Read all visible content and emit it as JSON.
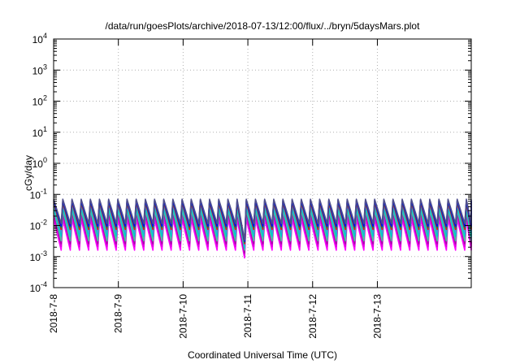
{
  "chart_data": {
    "type": "line",
    "title": "/data/run/goesPlots/archive/2018-07-13/12:00/flux/../bryn/5daysMars.plot",
    "xlabel": "Coordinated Universal Time (UTC)",
    "ylabel": "cGy/day",
    "y_scale": "log",
    "ylim": [
      0.0001,
      10000
    ],
    "xlim_days": [
      0,
      6.45
    ],
    "grid": true,
    "x_ticks": [
      {
        "label": "2018-7-8",
        "day": 0
      },
      {
        "label": "2018-7-9",
        "day": 1
      },
      {
        "label": "2018-7-10",
        "day": 2
      },
      {
        "label": "2018-7-11",
        "day": 3
      },
      {
        "label": "2018-7-12",
        "day": 4
      },
      {
        "label": "2018-7-13",
        "day": 5
      }
    ],
    "y_ticks": [
      {
        "base": "10",
        "exp": "-4",
        "value": 0.0001
      },
      {
        "base": "10",
        "exp": "-3",
        "value": 0.001
      },
      {
        "base": "10",
        "exp": "-2",
        "value": 0.01
      },
      {
        "base": "10",
        "exp": "-1",
        "value": 0.1
      },
      {
        "base": "10",
        "exp": "0",
        "value": 1
      },
      {
        "base": "10",
        "exp": "1",
        "value": 10
      },
      {
        "base": "10",
        "exp": "2",
        "value": 100
      },
      {
        "base": "10",
        "exp": "3",
        "value": 1000
      },
      {
        "base": "10",
        "exp": "4",
        "value": 10000
      }
    ],
    "sawtooth_period_hours": 3.4,
    "series": [
      {
        "color": "#ff00ff",
        "peak": 0.016,
        "trough": 0.0016,
        "dip_trough": 0.0009
      },
      {
        "color": "#dd00dd",
        "peak": 0.021,
        "trough": 0.0021,
        "dip_trough": 0.0011
      },
      {
        "color": "#aa00aa",
        "peak": 0.026,
        "trough": 0.0026,
        "dip_trough": 0.0013
      },
      {
        "color": "#4fc3a1",
        "peak": 0.032,
        "trough": 0.0032,
        "dip_trough": 0.0016
      },
      {
        "color": "#00cccc",
        "peak": 0.04,
        "trough": 0.0045,
        "dip_trough": 0.0019
      },
      {
        "color": "#3f9fd8",
        "peak": 0.048,
        "trough": 0.006,
        "dip_trough": 0.0023
      },
      {
        "color": "#ff0000",
        "peak": 0.055,
        "trough": 0.0075,
        "dip_trough": 0.0026
      },
      {
        "color": "#228b22",
        "peak": 0.06,
        "trough": 0.0085,
        "dip_trough": 0.0028
      },
      {
        "color": "#0000ff",
        "peak": 0.064,
        "trough": 0.0095,
        "dip_trough": 0.0031
      },
      {
        "color": "#50508c",
        "peak": 0.07,
        "trough": 0.0115,
        "dip_trough": 0.0034
      }
    ],
    "dip_window_days": [
      2.72,
      2.95
    ]
  }
}
